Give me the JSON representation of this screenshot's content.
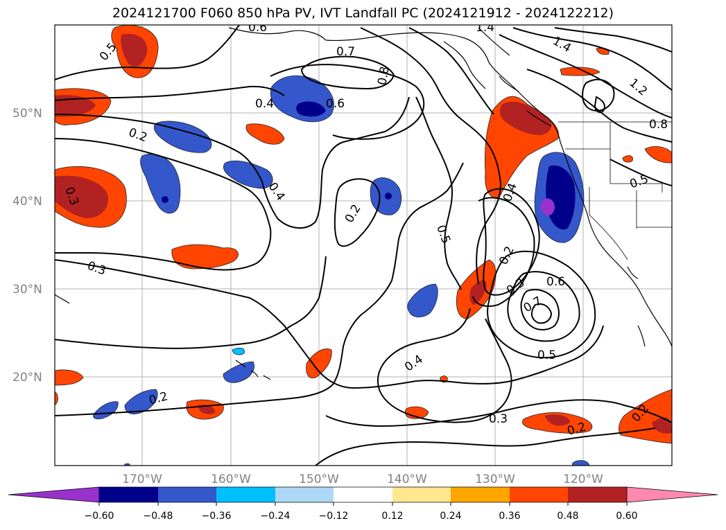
{
  "title": "2024121700 F060 850 hPa PV, IVT Landfall PC (2024121912 - 2024122212)",
  "map": {
    "lat_labels": [
      "50°N",
      "40°N",
      "30°N",
      "20°N"
    ],
    "lon_labels": [
      "170°W",
      "160°W",
      "150°W",
      "140°W",
      "130°W",
      "120°W"
    ],
    "contour_labels": [
      "0.5",
      "0.6",
      "1.4",
      "0.7",
      "0.8",
      "1.4",
      "1.2",
      "0.8",
      "0.4",
      "0.6",
      "0.2",
      "0.3",
      "0.4",
      "0.2",
      "0.5",
      "0.5",
      "0.4",
      "0.2",
      "0.3",
      "0.6",
      "0.7",
      "0.5",
      "0.4",
      "0.3",
      "0.2",
      "0.3",
      "0.2",
      "0.2"
    ]
  },
  "colorbar": {
    "colors": [
      "#9932cc",
      "#00008b",
      "#3457cc",
      "#00bfff",
      "#add8f5",
      "#ffffff",
      "#ffe78f",
      "#ffa500",
      "#ff4500",
      "#b22222",
      "#ff88b0"
    ],
    "tick_labels": [
      "−0.60",
      "−0.48",
      "−0.36",
      "−0.24",
      "−0.12",
      "0.12",
      "0.24",
      "0.36",
      "0.48",
      "0.60"
    ]
  }
}
